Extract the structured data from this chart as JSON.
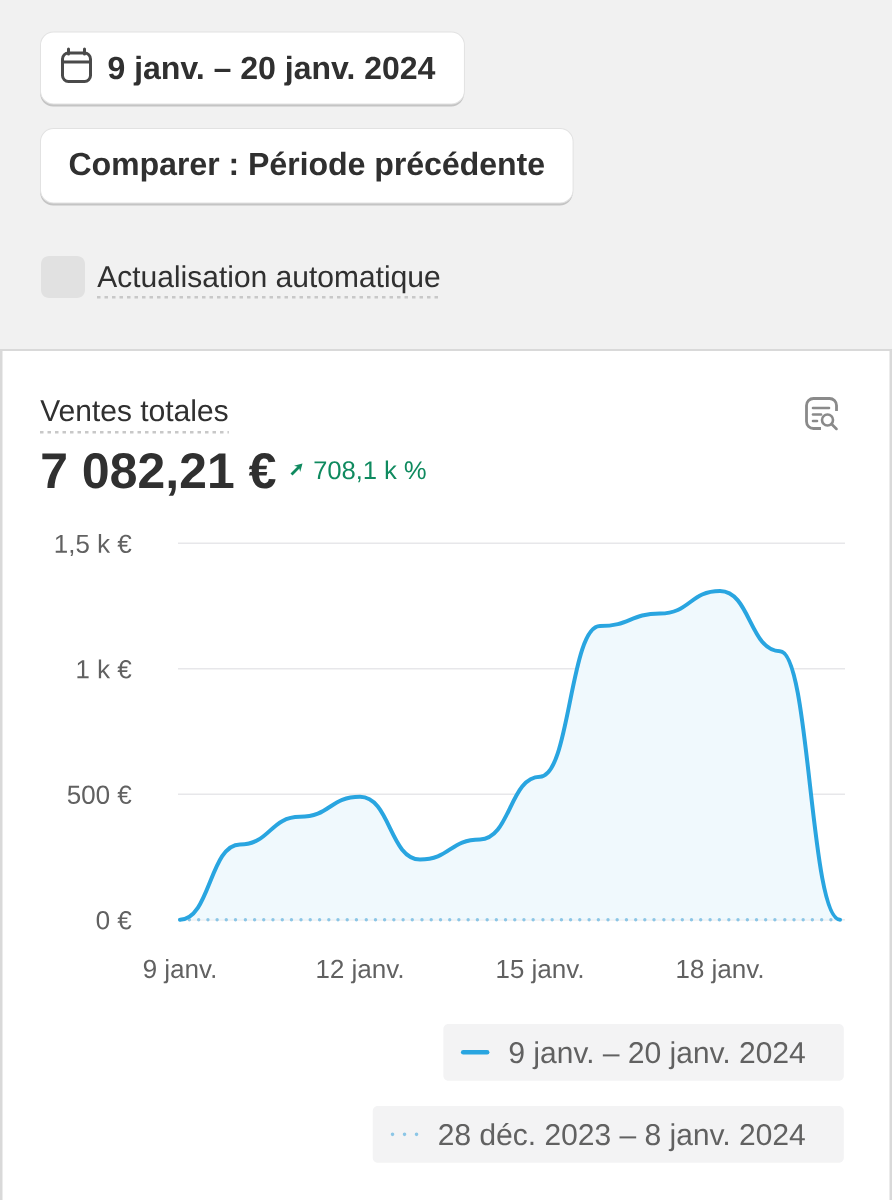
{
  "chart_data": {
    "type": "area",
    "title": "Ventes totales",
    "subtitle": "7 082,21 €",
    "annotations": [
      "9 janv. – 20 janv. 2024",
      "Comparer : Période précédente",
      "Actualisation automatique",
      "708,1 k %"
    ],
    "categories": [
      "9 janv.",
      null,
      null,
      "12 janv.",
      null,
      null,
      "15 janv.",
      null,
      null,
      "18 janv.",
      null,
      null
    ],
    "series": [
      {
        "name": "9 janv. – 20 janv. 2024",
        "color": "#29a5e0",
        "values": [
          0,
          300,
          410,
          490,
          240,
          320,
          570,
          1170,
          1220,
          1310,
          1070,
          0
        ]
      },
      {
        "name": "28 déc. 2023 – 8 janv. 2024",
        "type": "line",
        "line_style": "dotted",
        "color": "#8cc6e6",
        "values": [
          0,
          0,
          0,
          0,
          0,
          0,
          0,
          0,
          0,
          0,
          0,
          0
        ]
      }
    ],
    "ylim": [
      0,
      1500
    ],
    "yticks": [
      {
        "value": 0,
        "label": "0 €"
      },
      {
        "value": 500,
        "label": "500 €"
      },
      {
        "value": 1000,
        "label": "1 k €"
      },
      {
        "value": 1500,
        "label": "1,5 k €"
      }
    ],
    "grid": "y",
    "legend": "bottom right"
  }
}
